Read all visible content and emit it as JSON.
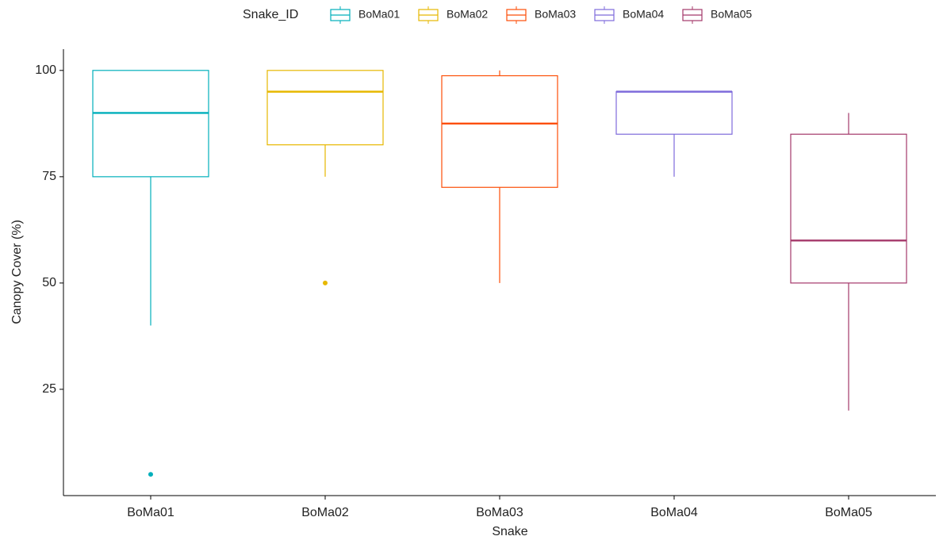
{
  "chart_data": {
    "type": "box",
    "x_label": "Snake",
    "y_label": "Canopy Cover (%)",
    "legend_title": "Snake_ID",
    "categories": [
      "BoMa01",
      "BoMa02",
      "BoMa03",
      "BoMa04",
      "BoMa05"
    ],
    "series": [
      {
        "name": "BoMa01",
        "color": "#00AFBB",
        "min": 40,
        "q1": 75,
        "median": 90,
        "q3": 100,
        "max": 100,
        "outliers": [
          5
        ]
      },
      {
        "name": "BoMa02",
        "color": "#E7B800",
        "min": 75,
        "q1": 82.5,
        "median": 95,
        "q3": 100,
        "max": 100,
        "outliers": [
          50
        ]
      },
      {
        "name": "BoMa03",
        "color": "#FC4E07",
        "min": 50,
        "q1": 72.5,
        "median": 87.5,
        "q3": 98.75,
        "max": 100,
        "outliers": []
      },
      {
        "name": "BoMa04",
        "color": "#7E6BDB",
        "min": 75,
        "q1": 85,
        "median": 95,
        "q3": 95,
        "max": 95,
        "outliers": []
      },
      {
        "name": "BoMa05",
        "color": "#A4386A",
        "min": 20,
        "q1": 50,
        "median": 60,
        "q3": 85,
        "max": 90,
        "outliers": []
      }
    ],
    "ylim": [
      0,
      105
    ],
    "yticks": [
      25,
      50,
      75,
      100
    ],
    "grid": false,
    "legend": "top"
  }
}
